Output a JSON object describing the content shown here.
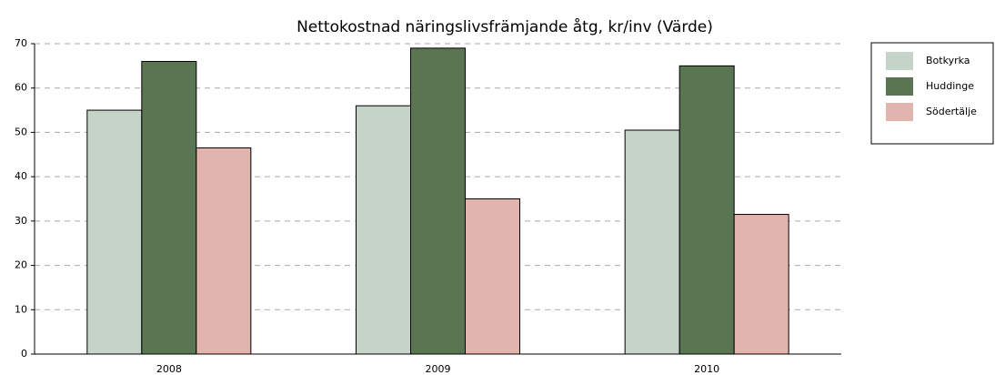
{
  "chart_data": {
    "type": "bar",
    "title": "Nettokostnad näringslivsfrämjande åtg, kr/inv (Värde)",
    "categories": [
      "2008",
      "2009",
      "2010"
    ],
    "series": [
      {
        "name": "Botkyrka",
        "color": "#c5d3c9",
        "values": [
          55,
          56,
          50.5
        ]
      },
      {
        "name": "Huddinge",
        "color": "#5a7552",
        "values": [
          66,
          69,
          65
        ]
      },
      {
        "name": "Södertälje",
        "color": "#e2b4ae",
        "values": [
          46.5,
          35,
          31.5
        ]
      }
    ],
    "ylim": [
      0,
      70
    ],
    "yticks": [
      0,
      10,
      20,
      30,
      40,
      50,
      60,
      70
    ],
    "grid": true,
    "legend": "right"
  }
}
